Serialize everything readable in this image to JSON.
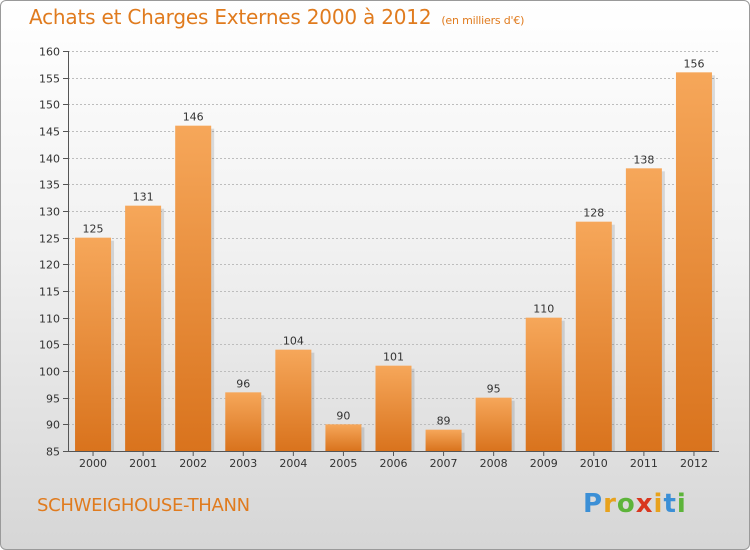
{
  "header": {
    "title": "Achats et Charges Externes 2000 à 2012",
    "subtitle": "(en milliers d'€)"
  },
  "footer": {
    "city": "SCHWEIGHOUSE-THANN",
    "logo_letters": [
      "P",
      "r",
      "o",
      "x",
      "i",
      "t",
      "i"
    ]
  },
  "colors": {
    "bar_top": "#f6a75a",
    "bar_bottom": "#d9731d",
    "title": "#e07b1e",
    "grid": "#bdbdbd"
  },
  "chart_data": {
    "type": "bar",
    "title": "Achats et Charges Externes 2000 à 2012",
    "subtitle": "(en milliers d'€)",
    "categories": [
      "2000",
      "2001",
      "2002",
      "2003",
      "2004",
      "2005",
      "2006",
      "2007",
      "2008",
      "2009",
      "2010",
      "2011",
      "2012"
    ],
    "values": [
      125,
      131,
      146,
      96,
      104,
      90,
      101,
      89,
      95,
      110,
      128,
      138,
      156
    ],
    "ylim": [
      85,
      160
    ],
    "yticks": [
      85,
      90,
      95,
      100,
      105,
      110,
      115,
      120,
      125,
      130,
      135,
      140,
      145,
      150,
      155,
      160
    ],
    "grid": true,
    "data_labels": true
  }
}
